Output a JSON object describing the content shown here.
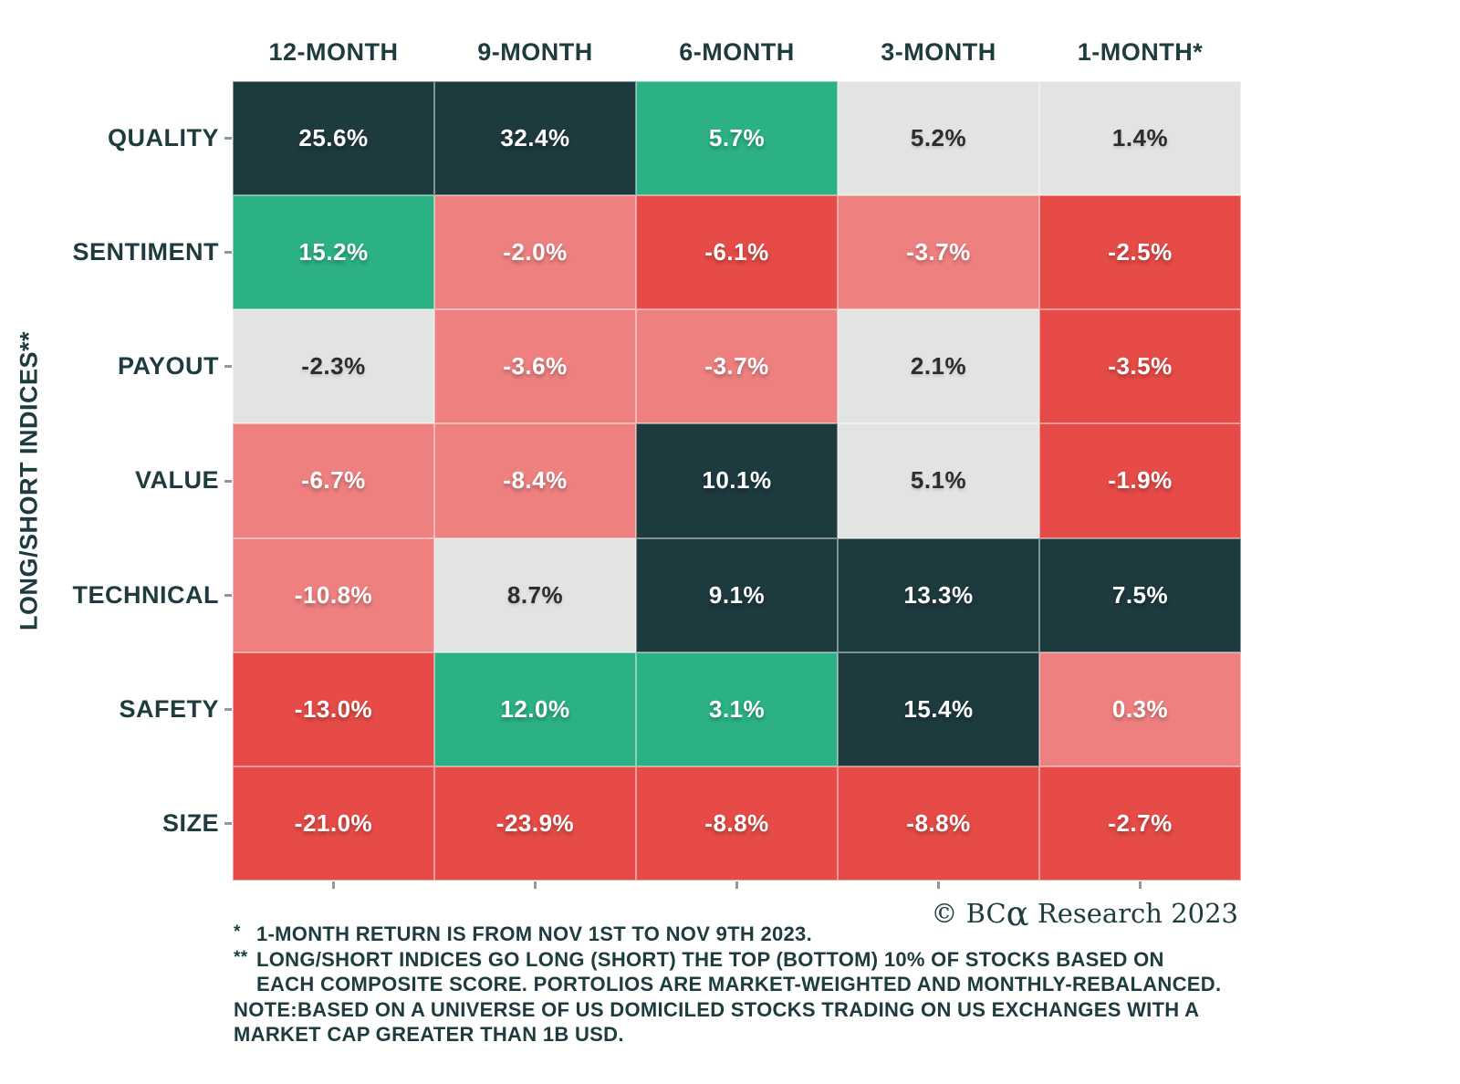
{
  "palette": {
    "dark": "#1d3a3f",
    "green": "#2cb185",
    "gray": "#e2e4e2",
    "salmon": "#ee8180",
    "red": "#e64b47",
    "heading_text": "#1e3b3e",
    "text_on_color": "#ffffff",
    "text_on_gray": "#2d2d2d"
  },
  "chart_data": {
    "type": "heatmap",
    "title": "",
    "ylabel": "LONG/SHORT INDICES**",
    "columns": [
      "12-MONTH",
      "9-MONTH",
      "6-MONTH",
      "3-MONTH",
      "1-MONTH*"
    ],
    "rows": [
      "QUALITY",
      "SENTIMENT",
      "PAYOUT",
      "VALUE",
      "TECHNICAL",
      "SAFETY",
      "SIZE"
    ],
    "values_pct": [
      [
        25.6,
        32.4,
        5.7,
        5.2,
        1.4
      ],
      [
        15.2,
        -2.0,
        -6.1,
        -3.7,
        -2.5
      ],
      [
        -2.3,
        -3.6,
        -3.7,
        2.1,
        -3.5
      ],
      [
        -6.7,
        -8.4,
        10.1,
        5.1,
        -1.9
      ],
      [
        -10.8,
        8.7,
        9.1,
        13.3,
        7.5
      ],
      [
        -13.0,
        12.0,
        3.1,
        15.4,
        0.3
      ],
      [
        -21.0,
        -23.9,
        -8.8,
        -8.8,
        -2.7
      ]
    ],
    "labels": [
      [
        "25.6%",
        "32.4%",
        "5.7%",
        "5.2%",
        "1.4%"
      ],
      [
        "15.2%",
        "-2.0%",
        "-6.1%",
        "-3.7%",
        "-2.5%"
      ],
      [
        "-2.3%",
        "-3.6%",
        "-3.7%",
        "2.1%",
        "-3.5%"
      ],
      [
        "-6.7%",
        "-8.4%",
        "10.1%",
        "5.1%",
        "-1.9%"
      ],
      [
        "-10.8%",
        "8.7%",
        "9.1%",
        "13.3%",
        "7.5%"
      ],
      [
        "-13.0%",
        "12.0%",
        "3.1%",
        "15.4%",
        "0.3%"
      ],
      [
        "-21.0%",
        "-23.9%",
        "-8.8%",
        "-8.8%",
        "-2.7%"
      ]
    ],
    "cell_colors": [
      [
        "dark",
        "dark",
        "green",
        "gray",
        "gray"
      ],
      [
        "green",
        "salmon",
        "red",
        "salmon",
        "red"
      ],
      [
        "gray",
        "salmon",
        "salmon",
        "gray",
        "red"
      ],
      [
        "salmon",
        "salmon",
        "dark",
        "gray",
        "red"
      ],
      [
        "salmon",
        "gray",
        "dark",
        "dark",
        "dark"
      ],
      [
        "red",
        "green",
        "green",
        "dark",
        "salmon"
      ],
      [
        "red",
        "red",
        "red",
        "red",
        "red"
      ]
    ],
    "legend_position": "none",
    "grid": false
  },
  "footer": {
    "copyright": {
      "prefix": "© BC",
      "alpha": "α",
      "suffix": " Research 2023"
    },
    "notes": [
      {
        "marker": "*",
        "indent": true,
        "text": "1-MONTH RETURN IS FROM NOV 1ST TO NOV 9TH 2023."
      },
      {
        "marker": "**",
        "indent": true,
        "text": "LONG/SHORT INDICES GO LONG (SHORT) THE TOP (BOTTOM) 10% OF STOCKS BASED ON"
      },
      {
        "marker": "",
        "indent": true,
        "text": "EACH COMPOSITE SCORE. PORTOLIOS ARE MARKET-WEIGHTED AND MONTHLY-REBALANCED."
      },
      {
        "marker": "",
        "indent": false,
        "text": "NOTE:BASED ON A UNIVERSE OF US DOMICILED STOCKS TRADING ON US EXCHANGES WITH A"
      },
      {
        "marker": "",
        "indent": false,
        "text": "MARKET CAP GREATER THAN 1B USD."
      }
    ]
  }
}
